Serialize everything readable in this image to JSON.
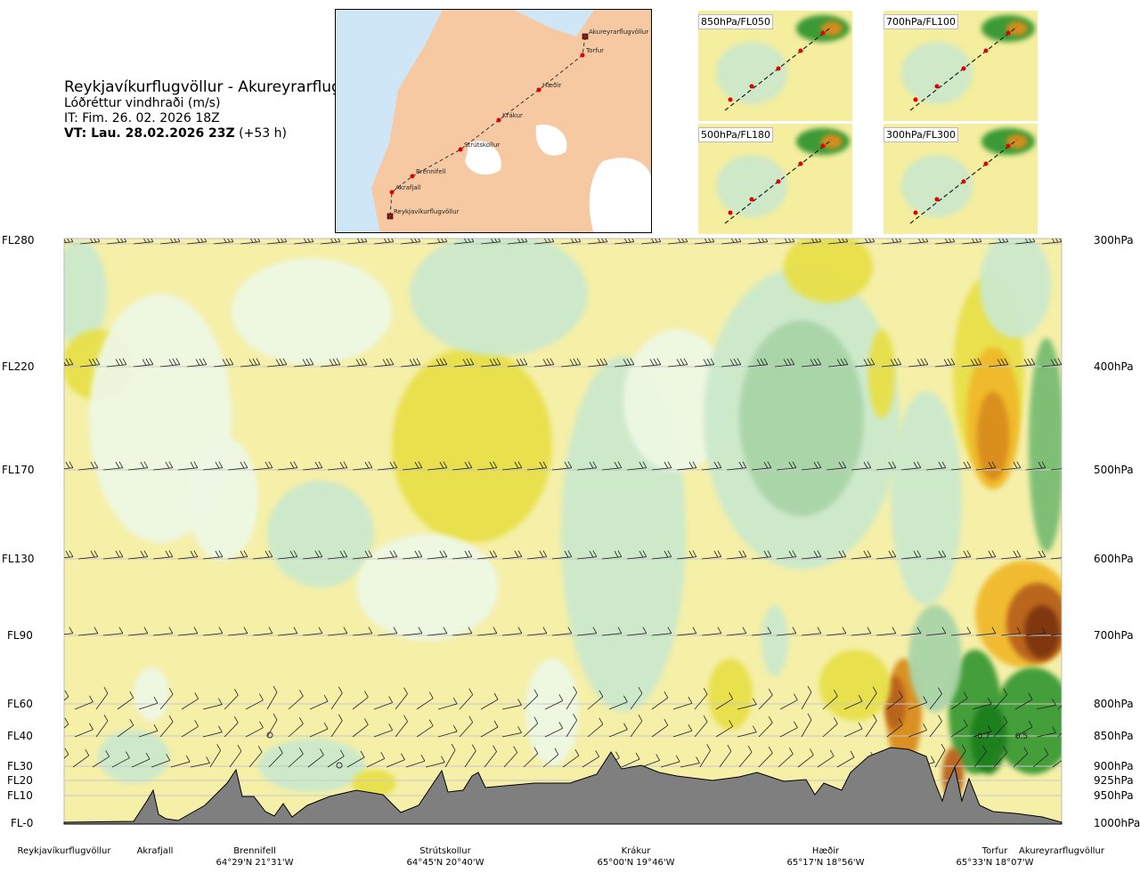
{
  "header": {
    "route": "Reykjavíkurflugvöllur - Akureyrarflugvöllur",
    "variable": "Lóðréttur vindhraði (m/s)",
    "issue_time": "IT: Fim. 26. 02. 2026 18Z",
    "valid_prefix": "VT: Lau. 28.02.2026 23Z",
    "valid_suffix": " (+53 h)"
  },
  "map": {
    "colors": {
      "sea": "#cfe6f6",
      "land": "#f6c9a3",
      "glacier": "#ffffff",
      "route": "#333333",
      "point": "#e00000"
    },
    "waypoints": [
      {
        "name": "Akureyrarflugvöllur",
        "marker": "square"
      },
      {
        "name": "Torfur",
        "marker": "dot"
      },
      {
        "name": "Hæðir",
        "marker": "dot"
      },
      {
        "name": "Krákur",
        "marker": "dot"
      },
      {
        "name": "Strútskollur",
        "marker": "dot"
      },
      {
        "name": "Brennifell",
        "marker": "dot"
      },
      {
        "name": "Akrafjall",
        "marker": "dot"
      },
      {
        "name": "Reykjavíkurflugvöllur",
        "marker": "square"
      }
    ]
  },
  "thumbnails": [
    {
      "label": "850hPa/FL050"
    },
    {
      "label": "700hPa/FL100"
    },
    {
      "label": "500hPa/FL180"
    },
    {
      "label": "300hPa/FL300"
    }
  ],
  "chart_data": {
    "type": "heatmap",
    "description_variable": "Lóðréttur vindhraði (m/s)",
    "left_axis_ticks": [
      "FL280",
      "FL220",
      "FL170",
      "FL130",
      "FL90",
      "FL60",
      "FL40",
      "FL30",
      "FL20",
      "FL10",
      "FL-0"
    ],
    "right_axis_ticks": [
      "300hPa",
      "400hPa",
      "500hPa",
      "600hPa",
      "700hPa",
      "800hPa",
      "850hPa",
      "900hPa",
      "925hPa",
      "950hPa",
      "1000hPa"
    ],
    "pressure_levels_hpa": [
      300,
      400,
      500,
      600,
      700,
      800,
      850,
      900,
      925,
      950,
      1000
    ],
    "locations": [
      {
        "name": "Reykjavíkurflugvöllur",
        "coord": ""
      },
      {
        "name": "Akrafjall",
        "coord": ""
      },
      {
        "name": "Brennifell",
        "coord": "64°29'N 21°31'W"
      },
      {
        "name": "Strútskollur",
        "coord": "64°45'N 20°40'W"
      },
      {
        "name": "Krákur",
        "coord": "65°00'N 19°46'W"
      },
      {
        "name": "Hæðir",
        "coord": "65°17'N 18°56'W"
      },
      {
        "name": "Torfur",
        "coord": "65°33'N 18°07'W"
      },
      {
        "name": "Akureyrarflugvöllur",
        "coord": ""
      }
    ],
    "value_annotations": [
      "-0.7",
      "0.5"
    ],
    "color_scale": {
      "downward": [
        "#f5efa8",
        "#e8e049",
        "#f0b92b",
        "#d98c1c",
        "#b8621a",
        "#7e3410"
      ],
      "upward": [
        "#eef8e4",
        "#cbe9cc",
        "#a9d4a8",
        "#78bd73",
        "#3a9a36",
        "#1c7e1c"
      ],
      "neutral": "#fdfbe0",
      "terrain": "#7f7f7f"
    },
    "grid": true
  }
}
